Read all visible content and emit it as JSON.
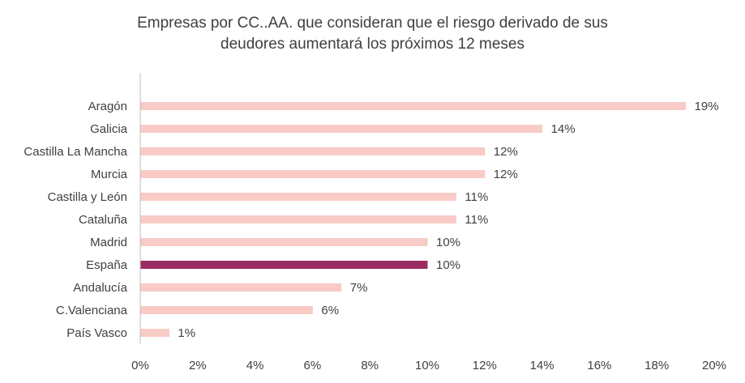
{
  "chart_data": {
    "type": "bar",
    "orientation": "horizontal",
    "title_lines": [
      "Empresas por CC..AA. que consideran que el riesgo derivado de sus",
      "deudores aumentará los próximos 12 meses"
    ],
    "categories": [
      "Aragón",
      "Galicia",
      "Castilla La Mancha",
      "Murcia",
      "Castilla y León",
      "Cataluña",
      "Madrid",
      "España",
      "Andalucía",
      "C.Valenciana",
      "País Vasco"
    ],
    "values": [
      19,
      14,
      12,
      12,
      11,
      11,
      10,
      10,
      7,
      6,
      1
    ],
    "value_labels": [
      "19%",
      "14%",
      "12%",
      "12%",
      "11%",
      "11%",
      "10%",
      "10%",
      "7%",
      "6%",
      "1%"
    ],
    "highlight_category": "España",
    "xlim": [
      0,
      20
    ],
    "x_ticks": [
      "0%",
      "2%",
      "4%",
      "6%",
      "8%",
      "10%",
      "12%",
      "14%",
      "16%",
      "18%",
      "20%"
    ],
    "grid": false,
    "legend": "none",
    "colors": {
      "bar": "#F8CBC7",
      "highlight": "#9B2D63",
      "axis": "#BFBFBF",
      "text": "#404040"
    }
  }
}
